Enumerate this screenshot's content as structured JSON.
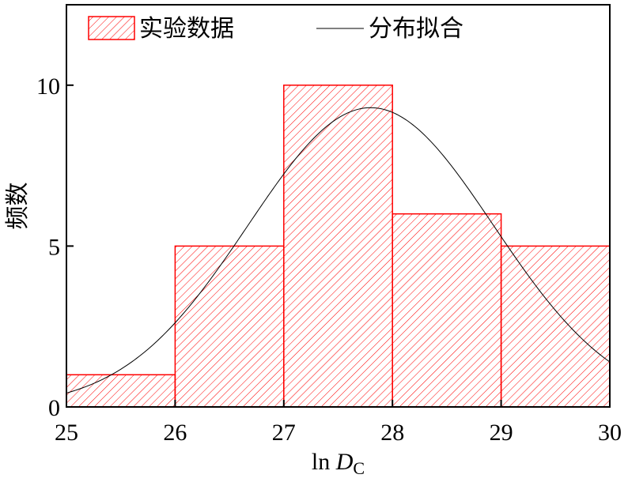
{
  "chart_data": {
    "type": "bar",
    "bin_edges": [
      25,
      26,
      27,
      28,
      29,
      30
    ],
    "values": [
      1,
      5,
      10,
      6,
      5
    ],
    "fit_curve": {
      "mean": 27.8,
      "std": 1.13,
      "peak": 9.3
    },
    "xlim": [
      25,
      30
    ],
    "ylim": [
      0,
      12.5
    ],
    "xticks": [
      "25",
      "26",
      "27",
      "28",
      "29",
      "30"
    ],
    "yticks": [
      {
        "value": 0,
        "label": "0"
      },
      {
        "value": 5,
        "label": "5"
      },
      {
        "value": 10,
        "label": "10"
      }
    ],
    "xlabel_main": "ln ",
    "xlabel_var": "D",
    "xlabel_sub": "C",
    "ylabel": "频数",
    "legend": {
      "placement": "top",
      "bar_label": "实验数据",
      "line_label": "分布拟合"
    },
    "colors": {
      "bar": "#ff0000",
      "curve": "#000000"
    },
    "grid": false
  }
}
